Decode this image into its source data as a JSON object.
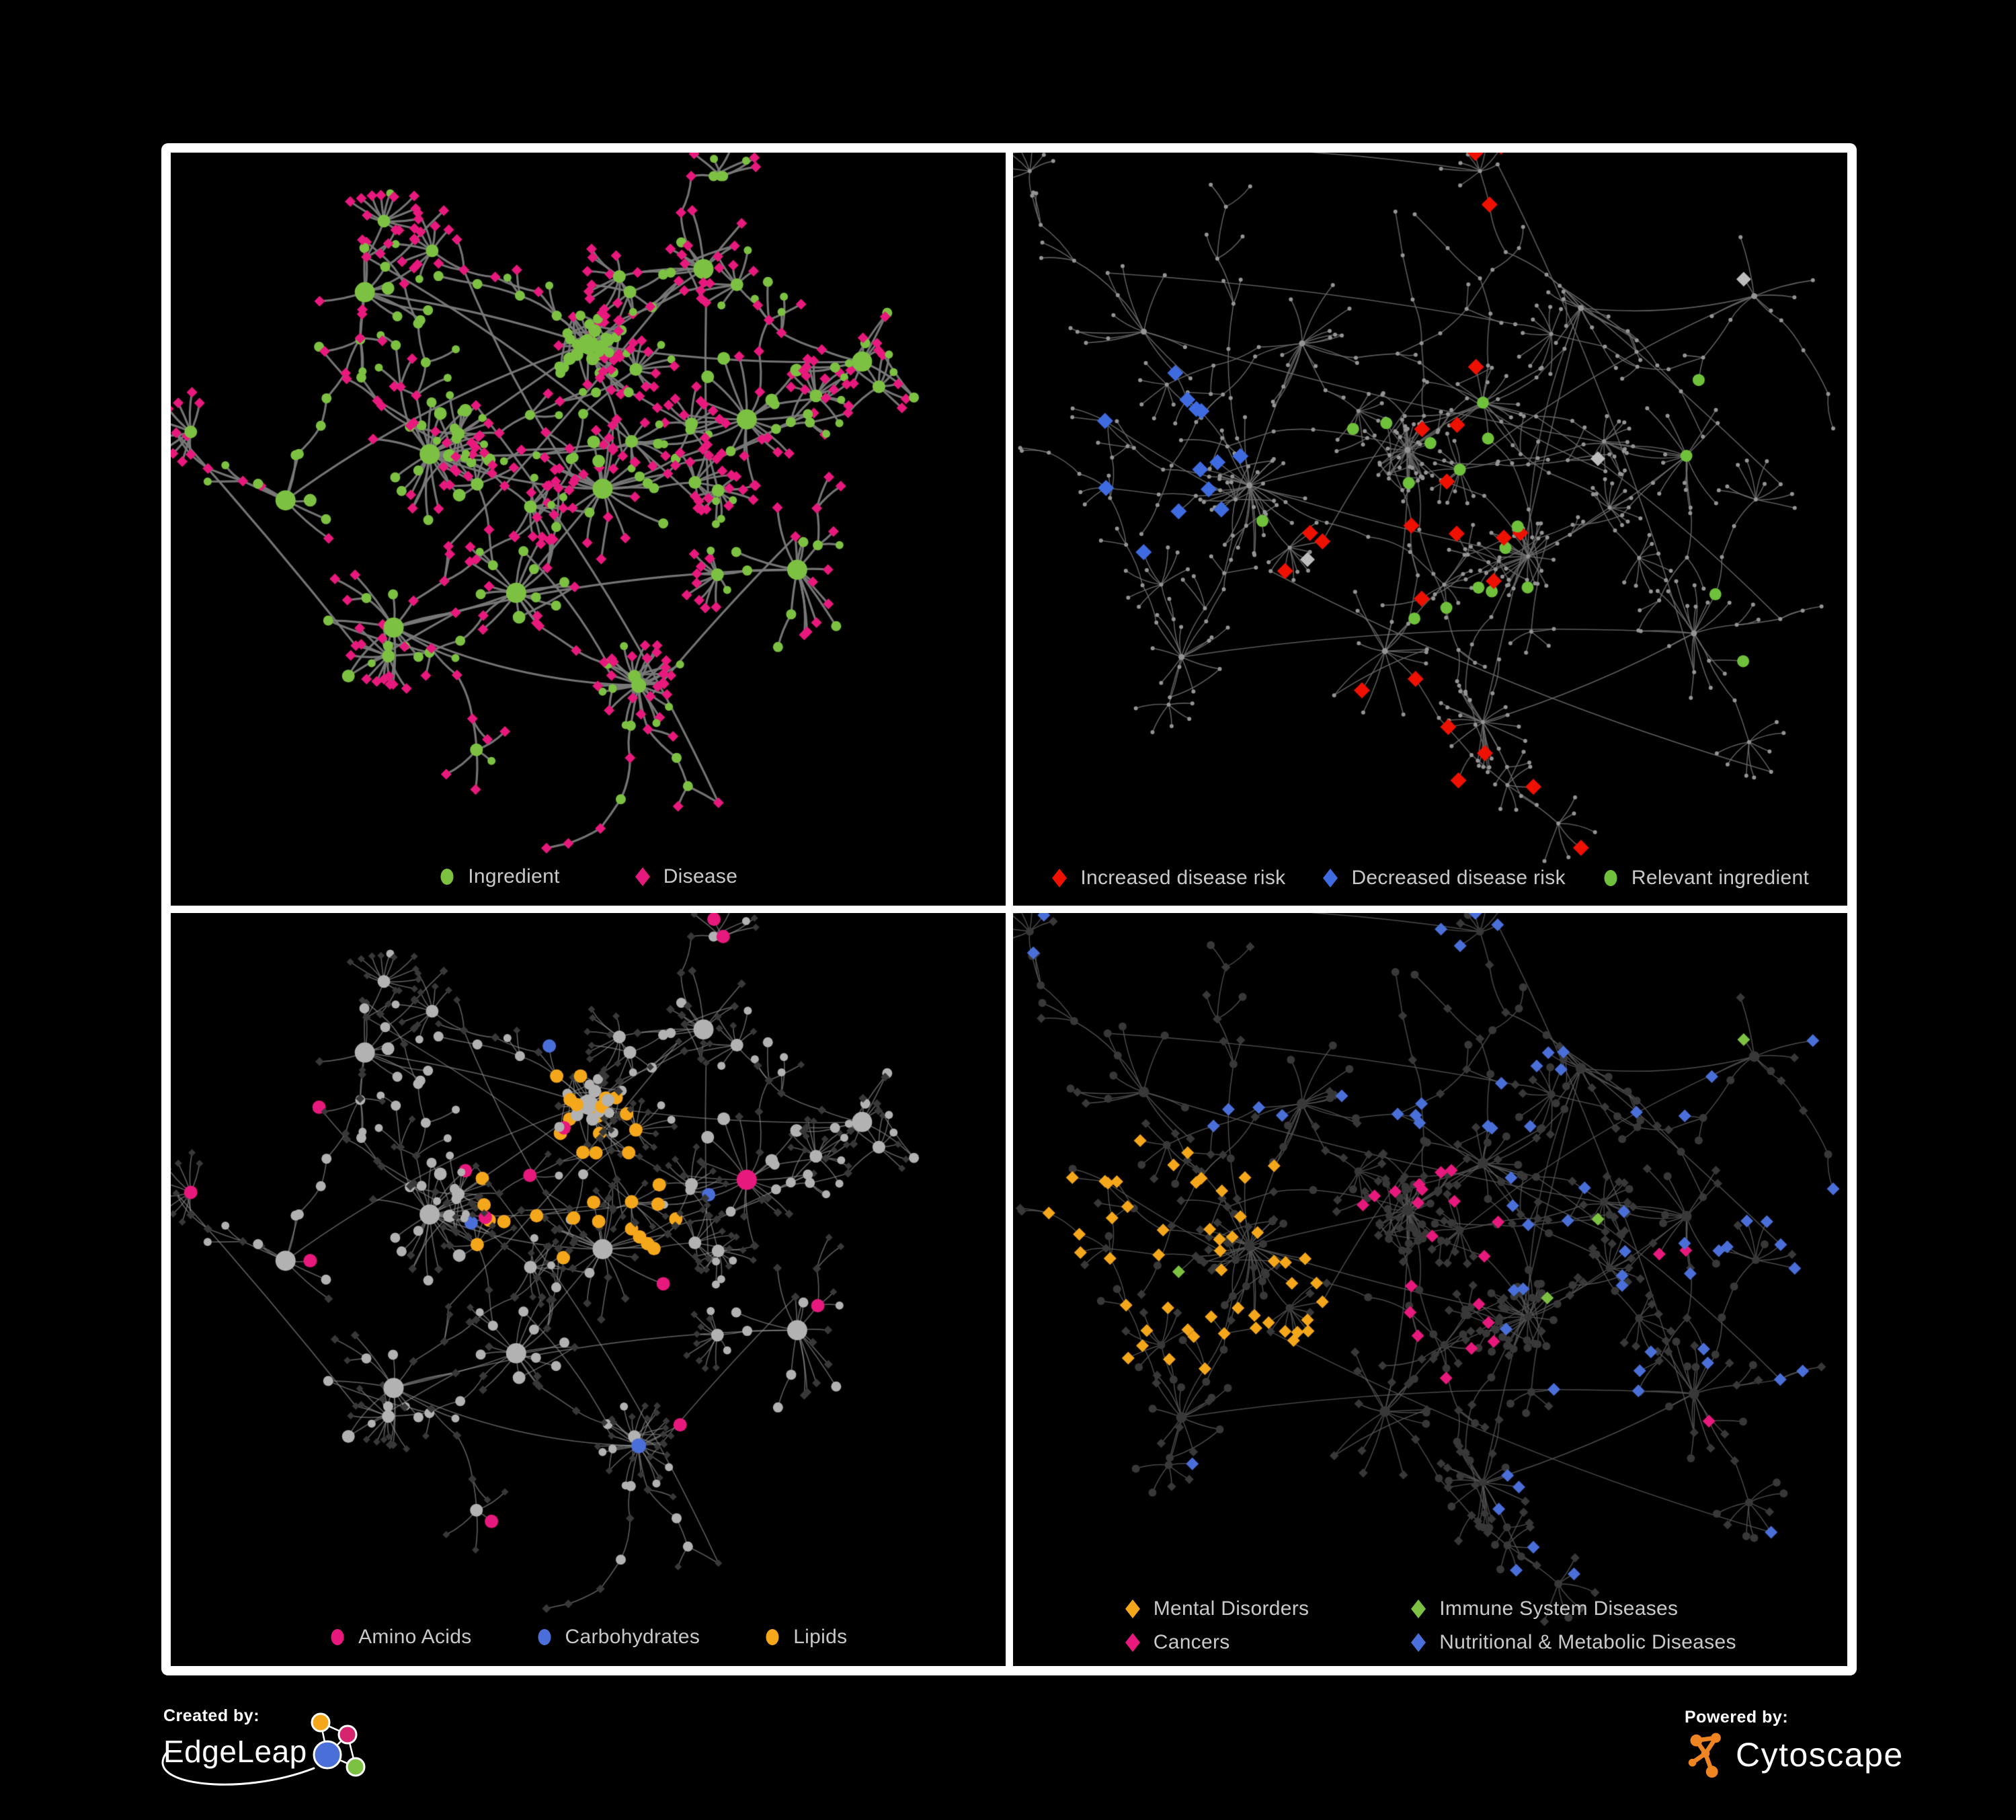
{
  "colors": {
    "background": "#000000",
    "frame": "#ffffff",
    "legend_text": "#c9c9c9",
    "green": "#7dc142",
    "magenta": "#e8197d",
    "red": "#ee1100",
    "royal_blue": "#3f6be0",
    "silver": "#bcbcbc",
    "amber": "#f5a71b",
    "light_gray_node": "#b2b2b2",
    "dark_node": "#383838"
  },
  "panels": [
    {
      "name": "ingredient-disease",
      "legend": {
        "rows": 1,
        "items": [
          {
            "shape": "circle",
            "color": "#7dc142",
            "label": "Ingredient"
          },
          {
            "shape": "diamond",
            "color": "#e8197d",
            "label": "Disease"
          }
        ]
      },
      "net": {
        "graph": "A",
        "mode": "typed",
        "edge": {
          "color": "#7a7a7a",
          "width": 3.2,
          "alpha": 0.95
        },
        "circle": "#7dc142",
        "diamond": "#e8197d"
      }
    },
    {
      "name": "disease-risk",
      "legend": {
        "rows": 1,
        "items": [
          {
            "shape": "diamond",
            "color": "#ee1100",
            "label": "Increased disease risk"
          },
          {
            "shape": "diamond",
            "color": "#3f6be0",
            "label": "Decreased disease risk"
          },
          {
            "shape": "circle",
            "color": "#6fc03a",
            "label": "Relevant ingredient"
          }
        ]
      },
      "net": {
        "graph": "B",
        "mode": "highlight",
        "edge": {
          "color": "#6c6c6c",
          "width": 1.6,
          "alpha": 0.85
        },
        "base": "#949494",
        "red": "#ee1100",
        "blue": "#3f6be0",
        "silver": "#bcbcbc",
        "green": "#6fc03a",
        "p_red": 0.115,
        "p_blue": 0.17,
        "p_silver": 0.016,
        "p_green": 0.12
      }
    },
    {
      "name": "nutrient-classes",
      "legend": {
        "rows": 1,
        "items": [
          {
            "shape": "circle",
            "color": "#e8197d",
            "label": "Amino Acids"
          },
          {
            "shape": "circle",
            "color": "#4a6fd8",
            "label": "Carbohydrates"
          },
          {
            "shape": "circle",
            "color": "#f5a71b",
            "label": "Lipids"
          }
        ]
      },
      "net": {
        "graph": "A",
        "mode": "classes",
        "edge": {
          "color": "#8f8f8f",
          "width": 1.7,
          "alpha": 0.62
        },
        "circle": "#b2b2b2",
        "diamond": "#383838",
        "amino": "#e8197d",
        "carb": "#4a6fd8",
        "lipid": "#f5a71b",
        "p_lipid": 0.5,
        "p_amino": 0.09,
        "p_carb": 0.05
      }
    },
    {
      "name": "disease-classes",
      "legend": {
        "rows": 2,
        "items": [
          {
            "shape": "diamond",
            "color": "#f5a71b",
            "label": "Mental Disorders"
          },
          {
            "shape": "diamond",
            "color": "#7dc142",
            "label": "Immune System Diseases"
          },
          {
            "shape": "diamond",
            "color": "#e8197d",
            "label": "Cancers"
          },
          {
            "shape": "diamond",
            "color": "#4a6fd8",
            "label": "Nutritional & Metabolic Diseases"
          }
        ]
      },
      "net": {
        "graph": "B",
        "mode": "disease",
        "edge": {
          "color": "#565656",
          "width": 1.5,
          "alpha": 0.85
        },
        "base": "#383838",
        "mental": "#f5a71b",
        "immune": "#7dc142",
        "cancer": "#e8197d",
        "nutri": "#4a6fd8",
        "p_mental": 0.55,
        "p_cancer": 0.32,
        "p_nutri": 0.26,
        "p_immune": 0.025
      }
    }
  ],
  "networks": {
    "A": {
      "seed": 11,
      "step": 54,
      "dfrac": 0.6,
      "burst": 0.42,
      "cross": 9,
      "margin": [
        85,
        70,
        190
      ],
      "clusters": [
        [
          0.5,
          0.25,
          "hair",
          36,
          5
        ],
        [
          0.28,
          0.44,
          "hub",
          24,
          5
        ],
        [
          0.52,
          0.5,
          "hub",
          20,
          4
        ],
        [
          0.4,
          0.68,
          "hub",
          14,
          4
        ],
        [
          0.72,
          0.38,
          "hub",
          14,
          4
        ],
        [
          0.23,
          0.74,
          "hub",
          10,
          3
        ],
        [
          0.57,
          0.84,
          "burst",
          22,
          2
        ],
        [
          0.79,
          0.64,
          "hub",
          12,
          3
        ],
        [
          0.66,
          0.12,
          "hub",
          9,
          3
        ],
        [
          0.19,
          0.16,
          "hub",
          8,
          3
        ],
        [
          0.88,
          0.28,
          "hub",
          7,
          2
        ],
        [
          0.08,
          0.52,
          "hub",
          6,
          2
        ]
      ]
    },
    "B": {
      "seed": 29,
      "step": 60,
      "dfrac": 0.68,
      "burst": 0.5,
      "cross": 10,
      "margin": [
        60,
        55,
        185
      ],
      "clusters": [
        [
          0.26,
          0.5,
          "hub",
          26,
          6
        ],
        [
          0.47,
          0.44,
          "hair",
          30,
          6
        ],
        [
          0.57,
          0.36,
          "hub",
          16,
          4
        ],
        [
          0.63,
          0.62,
          "burst",
          24,
          3
        ],
        [
          0.33,
          0.26,
          "hub",
          14,
          4
        ],
        [
          0.7,
          0.2,
          "hub",
          10,
          3
        ],
        [
          0.84,
          0.45,
          "hub",
          12,
          3
        ],
        [
          0.44,
          0.78,
          "hub",
          12,
          3
        ],
        [
          0.57,
          0.9,
          "burst",
          20,
          2
        ],
        [
          0.85,
          0.75,
          "hub",
          14,
          3
        ],
        [
          0.17,
          0.79,
          "hub",
          10,
          3
        ],
        [
          0.12,
          0.24,
          "hub",
          8,
          3
        ],
        [
          0.93,
          0.18,
          "hub",
          6,
          2
        ]
      ]
    }
  },
  "footer": {
    "created_by_label": "Created by:",
    "created_by_brand": "EdgeLeap",
    "powered_by_label": "Powered by:",
    "powered_by_brand": "Cytoscape"
  }
}
